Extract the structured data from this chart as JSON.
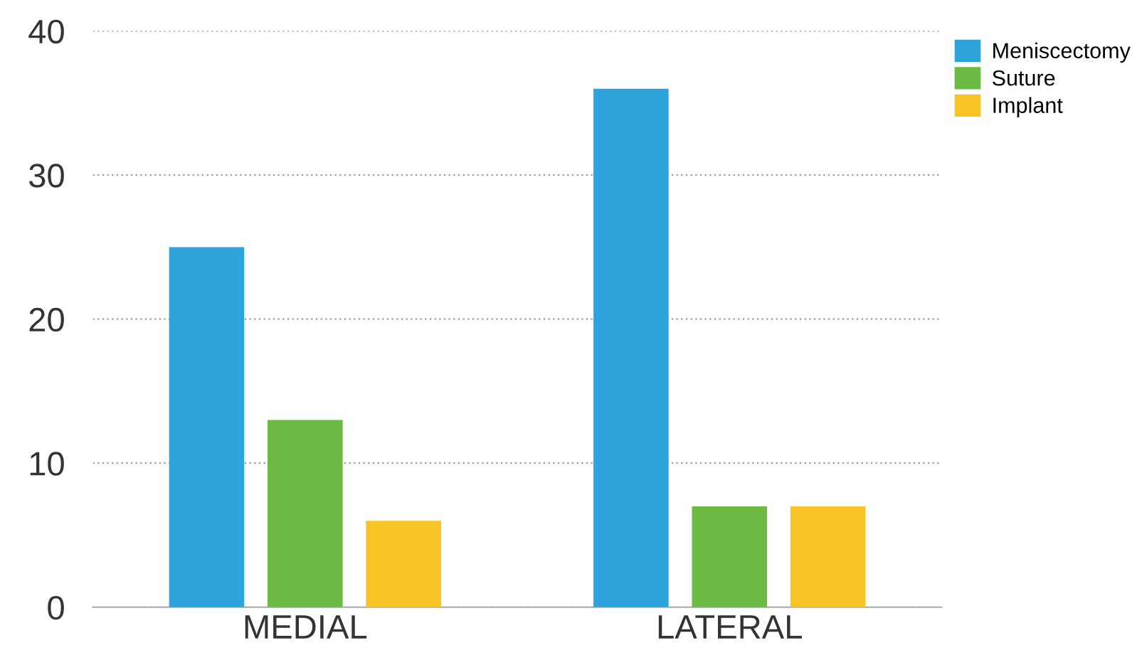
{
  "chart_data": {
    "type": "bar",
    "categories": [
      "MEDIAL",
      "LATERAL"
    ],
    "series": [
      {
        "name": "Meniscectomy",
        "color": "#2fa3dc",
        "values": [
          25,
          36
        ]
      },
      {
        "name": "Suture",
        "color": "#6cbb45",
        "values": [
          13,
          7
        ]
      },
      {
        "name": "Implant",
        "color": "#f7c325",
        "values": [
          6,
          7
        ]
      }
    ],
    "ylim": [
      0,
      40
    ],
    "yticks": [
      0,
      10,
      20,
      30,
      40
    ],
    "grid": "y",
    "legend": "top right"
  }
}
